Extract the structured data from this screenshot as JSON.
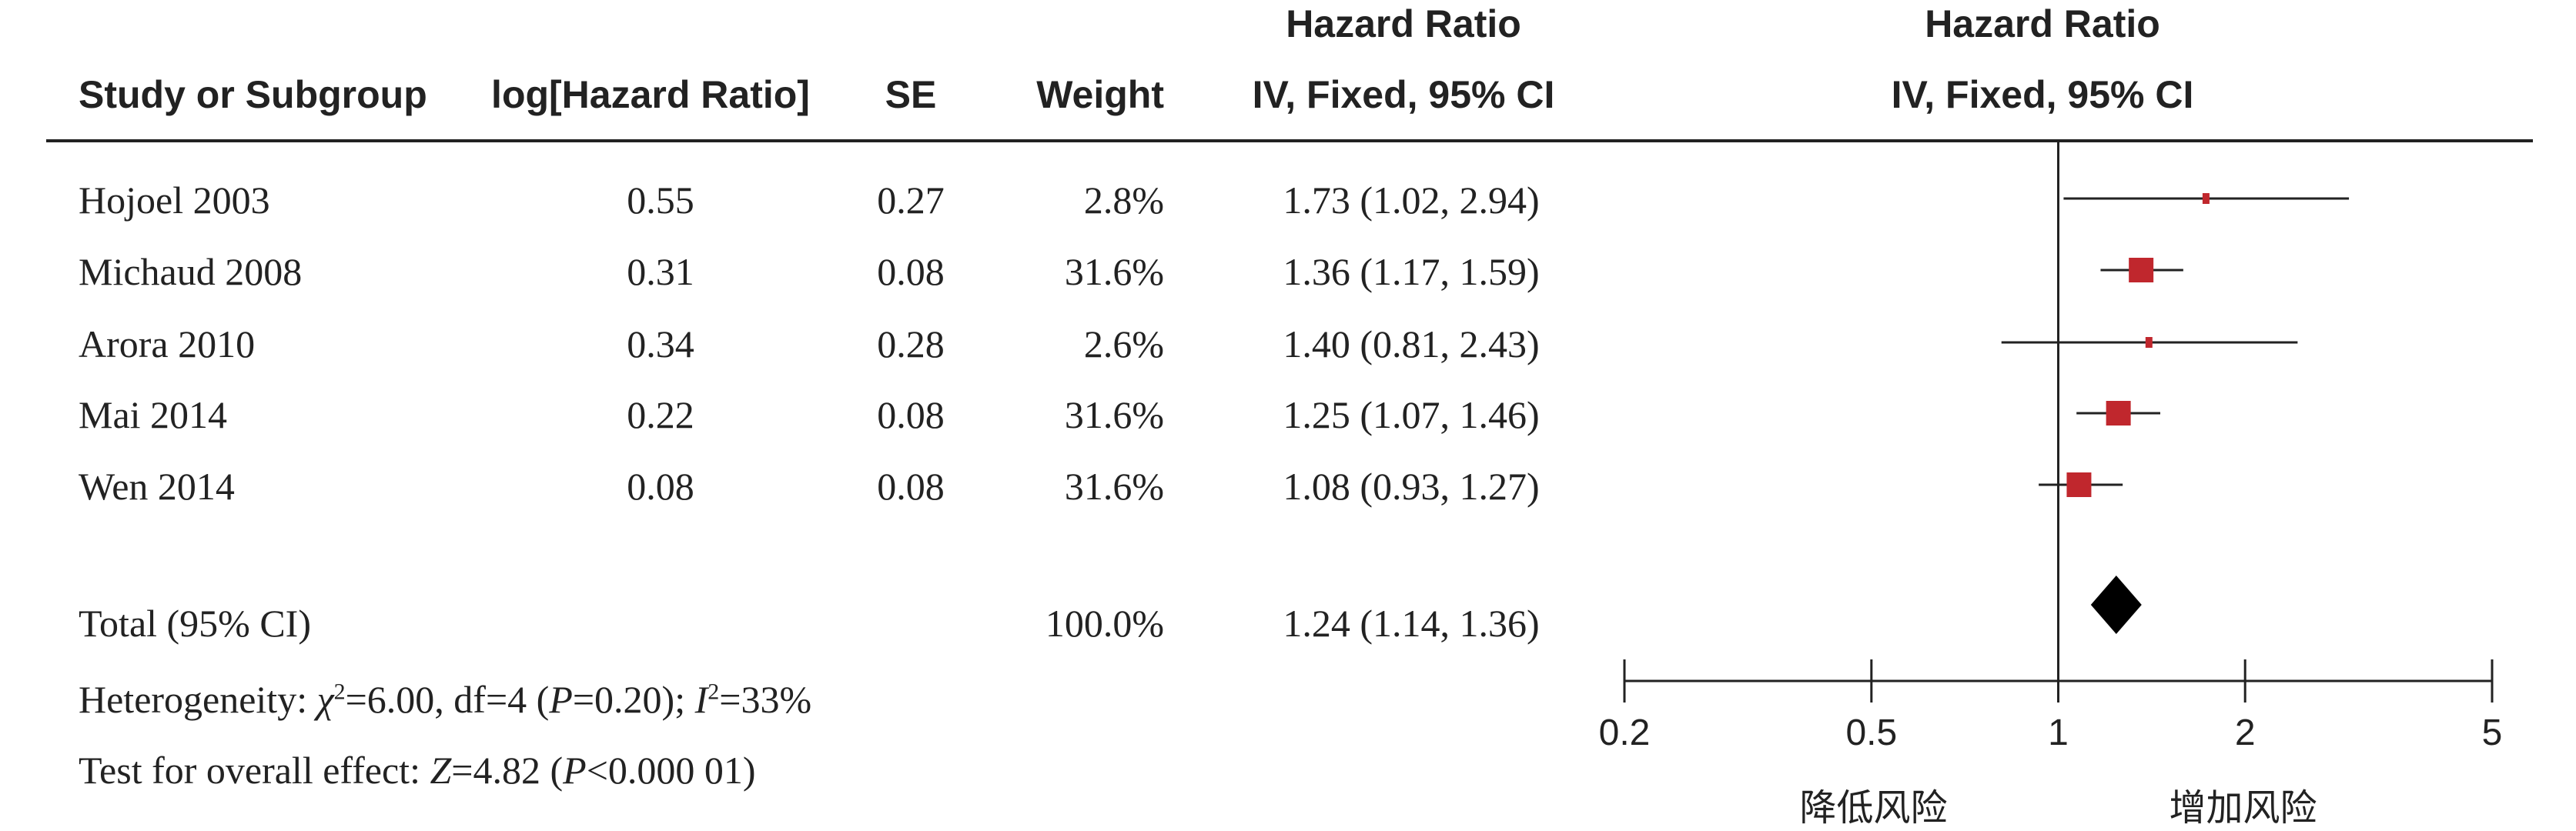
{
  "header": {
    "hr_top_left": "Hazard Ratio",
    "hr_top_right": "Hazard Ratio",
    "col_study": "Study or Subgroup",
    "col_log": "log[Hazard Ratio]",
    "col_se": "SE",
    "col_weight": "Weight",
    "col_ci": "IV, Fixed, 95% CI",
    "col_plot": "IV, Fixed, 95% CI"
  },
  "rows": [
    {
      "study": "Hojoel 2003",
      "log": "0.55",
      "se": "0.27",
      "weight": "2.8%",
      "ci": "1.73 (1.02, 2.94)"
    },
    {
      "study": "Michaud 2008",
      "log": "0.31",
      "se": "0.08",
      "weight": "31.6%",
      "ci": "1.36 (1.17, 1.59)"
    },
    {
      "study": "Arora 2010",
      "log": "0.34",
      "se": "0.28",
      "weight": "2.6%",
      "ci": "1.40 (0.81, 2.43)"
    },
    {
      "study": "Mai 2014",
      "log": "0.22",
      "se": "0.08",
      "weight": "31.6%",
      "ci": "1.25 (1.07, 1.46)"
    },
    {
      "study": "Wen 2014",
      "log": "0.08",
      "se": "0.08",
      "weight": "31.6%",
      "ci": "1.08 (0.93, 1.27)"
    }
  ],
  "total": {
    "label": "Total (95% CI)",
    "weight": "100.0%",
    "ci": "1.24 (1.14, 1.36)"
  },
  "heterogeneity": {
    "prefix": "Heterogeneity: ",
    "chi_symbol": "χ",
    "chi_text": "=6.00, df=4 (",
    "p_symbol": "P",
    "p_text": "=0.20); ",
    "i_symbol": "I",
    "i_text": "=33%"
  },
  "overall": {
    "prefix": "Test for overall effect: ",
    "z_symbol": "Z",
    "z_text": "=4.82 (",
    "p_symbol": "P",
    "p_text": "<0.000 01)"
  },
  "favours": {
    "left": "降低风险",
    "right": "增加风险"
  },
  "colors": {
    "square": "#c0272d",
    "diamond": "#000000",
    "line": "#222222"
  },
  "chart_data": {
    "type": "forest",
    "scale": "log",
    "xlim": [
      0.2,
      5
    ],
    "ticks": [
      0.2,
      0.5,
      1,
      2,
      5
    ],
    "tick_labels": [
      "0.2",
      "0.5",
      "1",
      "2",
      "5"
    ],
    "null_line": 1,
    "studies": [
      {
        "name": "Hojoel 2003",
        "hr": 1.73,
        "lower": 1.02,
        "upper": 2.94,
        "weight": 2.8
      },
      {
        "name": "Michaud 2008",
        "hr": 1.36,
        "lower": 1.17,
        "upper": 1.59,
        "weight": 31.6
      },
      {
        "name": "Arora 2010",
        "hr": 1.4,
        "lower": 0.81,
        "upper": 2.43,
        "weight": 2.6
      },
      {
        "name": "Mai 2014",
        "hr": 1.25,
        "lower": 1.07,
        "upper": 1.46,
        "weight": 31.6
      },
      {
        "name": "Wen 2014",
        "hr": 1.08,
        "lower": 0.93,
        "upper": 1.27,
        "weight": 31.6
      }
    ],
    "pooled": {
      "hr": 1.24,
      "lower": 1.14,
      "upper": 1.36
    }
  }
}
